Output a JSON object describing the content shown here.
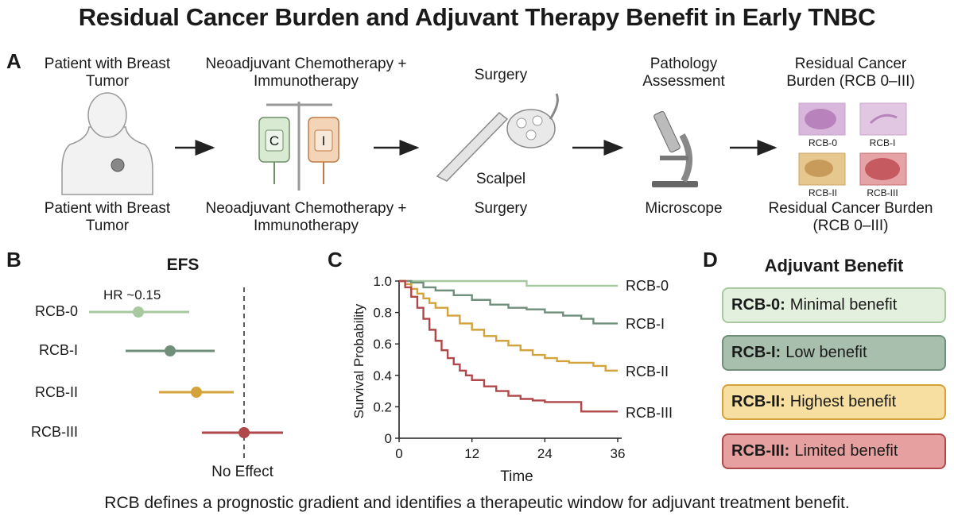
{
  "title": "Residual Cancer Burden and Adjuvant Therapy Benefit in Early TNBC",
  "panels": {
    "a": "A",
    "b": "B",
    "c": "C",
    "d": "D"
  },
  "workflow": {
    "steps": [
      {
        "top_label": "Patient with Breast Tumor",
        "bottom_label": "Patient with Breast Tumor"
      },
      {
        "top_label": "Neoadjuvant Chemotherapy + Immunotherapy",
        "bottom_label": "Neoadjuvant Chemotherapy + Immunotherapy",
        "bag_labels": [
          "C",
          "I"
        ]
      },
      {
        "top_label": "Surgery",
        "mid_label": "Scalpel",
        "bottom_label": "Surgery"
      },
      {
        "top_label": "Pathology Assessment",
        "bottom_label": "Microscope"
      },
      {
        "top_label": "Residual Cancer Burden (RCB 0–III)",
        "bottom_label": "Residual Cancer Burden (RCB 0–III)",
        "tiles": [
          "RCB-0",
          "RCB-I",
          "RCB-II",
          "RCB-III"
        ]
      }
    ]
  },
  "forest": {
    "title": "EFS",
    "annotation": "HR ~0.15",
    "reference_label": "No Effect",
    "rows": [
      {
        "label": "RCB-0",
        "color": "#a8c9a0"
      },
      {
        "label": "RCB-I",
        "color": "#6f8f7a"
      },
      {
        "label": "RCB-II",
        "color": "#d4a23a"
      },
      {
        "label": "RCB-III",
        "color": "#b0474a"
      }
    ]
  },
  "chart_data": {
    "type": "line",
    "title": "",
    "xlabel": "Time",
    "ylabel": "Survival Probability",
    "xlim": [
      0,
      36
    ],
    "ylim": [
      0,
      1.0
    ],
    "xticks": [
      "0",
      "12",
      "24",
      "36"
    ],
    "yticks": [
      "0",
      "0.2",
      "0.4",
      "0.6",
      "0.8",
      "1.0"
    ],
    "series": [
      {
        "name": "RCB-0",
        "color": "#a8c9a0",
        "x": [
          0,
          21,
          36
        ],
        "y": [
          1.0,
          0.97,
          0.97
        ]
      },
      {
        "name": "RCB-I",
        "color": "#6f8f7a",
        "x": [
          0,
          2,
          4,
          6,
          9,
          12,
          15,
          18,
          21,
          24,
          27,
          30,
          32,
          36
        ],
        "y": [
          1.0,
          0.99,
          0.96,
          0.94,
          0.91,
          0.88,
          0.85,
          0.83,
          0.82,
          0.8,
          0.78,
          0.76,
          0.73,
          0.73
        ]
      },
      {
        "name": "RCB-II",
        "color": "#d4a23a",
        "x": [
          0,
          1,
          2,
          3,
          4,
          5,
          6,
          8,
          10,
          12,
          14,
          16,
          18,
          20,
          22,
          24,
          26,
          28,
          30,
          32,
          34,
          36
        ],
        "y": [
          1.0,
          0.98,
          0.95,
          0.92,
          0.89,
          0.86,
          0.83,
          0.78,
          0.73,
          0.69,
          0.65,
          0.62,
          0.59,
          0.56,
          0.53,
          0.51,
          0.49,
          0.48,
          0.48,
          0.46,
          0.43,
          0.43
        ]
      },
      {
        "name": "RCB-III",
        "color": "#b0474a",
        "x": [
          0,
          1,
          2,
          3,
          4,
          5,
          6,
          7,
          8,
          9,
          10,
          11,
          12,
          14,
          16,
          18,
          20,
          22,
          24,
          26,
          28,
          30,
          32,
          34,
          36
        ],
        "y": [
          1.0,
          0.96,
          0.9,
          0.83,
          0.76,
          0.69,
          0.62,
          0.56,
          0.51,
          0.47,
          0.43,
          0.4,
          0.37,
          0.33,
          0.3,
          0.27,
          0.25,
          0.24,
          0.23,
          0.23,
          0.23,
          0.17,
          0.17,
          0.17,
          0.17
        ]
      }
    ]
  },
  "benefit": {
    "title": "Adjuvant Benefit",
    "items": [
      {
        "strong": "RCB-0:",
        "text": "Minimal benefit",
        "bg": "#e3f0dd",
        "border": "#a8c9a0"
      },
      {
        "strong": "RCB-I:",
        "text": "Low benefit",
        "bg": "#a9bfae",
        "border": "#6f8f7a"
      },
      {
        "strong": "RCB-II:",
        "text": "Highest benefit",
        "bg": "#f6dfa0",
        "border": "#d4a23a"
      },
      {
        "strong": "RCB-III:",
        "text": "Limited benefit",
        "bg": "#e7a0a0",
        "border": "#b0474a"
      }
    ]
  },
  "footer": "RCB defines a prognostic gradient and identifies a therapeutic window for adjuvant treatment benefit."
}
